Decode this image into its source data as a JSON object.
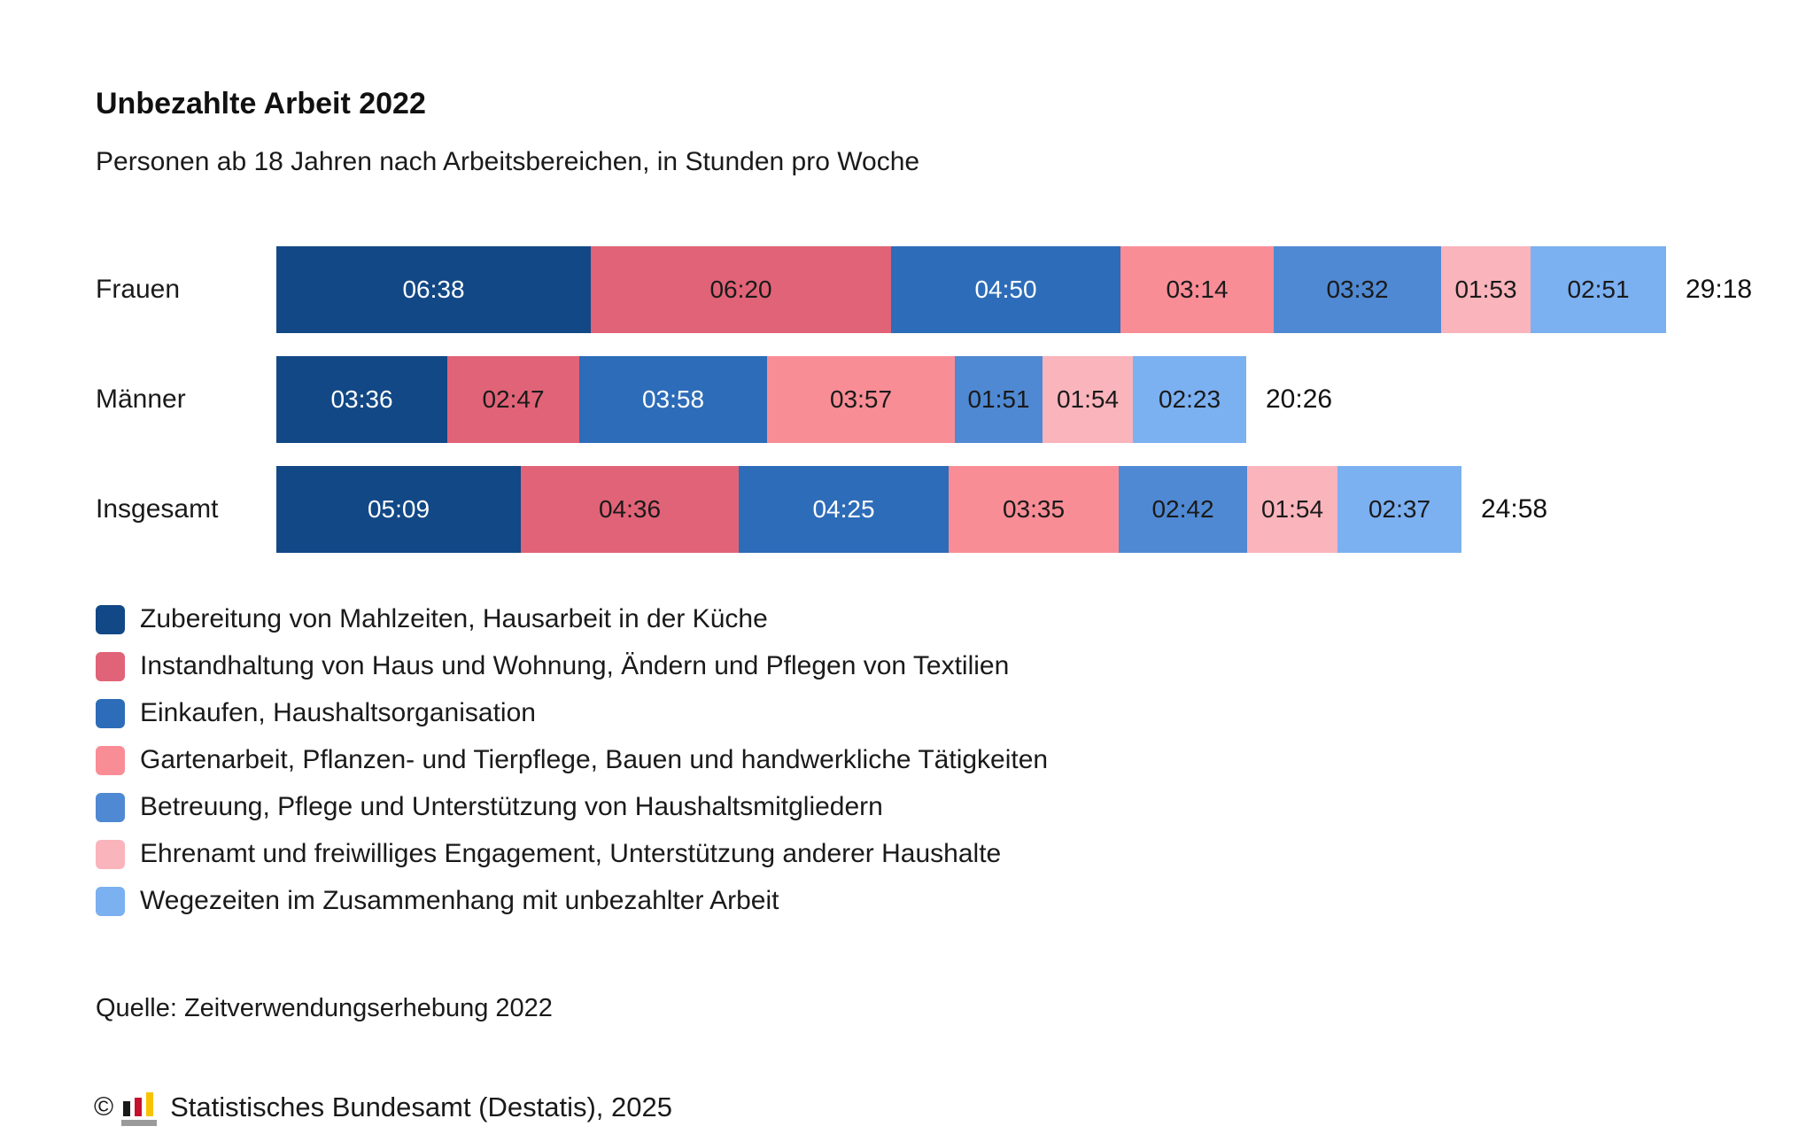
{
  "title": "Unbezahlte Arbeit 2022",
  "subtitle": "Personen ab 18 Jahren nach Arbeitsbereichen, in Stunden pro Woche",
  "chart_data": {
    "type": "bar",
    "orientation": "horizontal",
    "stacked": true,
    "value_format": "hh:mm",
    "unit": "Stunden pro Woche",
    "grid": false,
    "legend_position": "bottom",
    "categories": [
      "Frauen",
      "Männer",
      "Insgesamt"
    ],
    "series": [
      {
        "name": "Zubereitung von Mahlzeiten, Hausarbeit in der Küche",
        "color": "#124886",
        "label_color": "#ffffff",
        "values": [
          "06:38",
          "03:36",
          "05:09"
        ]
      },
      {
        "name": "Instandhaltung von Haus und Wohnung, Ändern und Pflegen von Textilien",
        "color": "#E16377",
        "label_color": "#1a1a1a",
        "values": [
          "06:20",
          "02:47",
          "04:36"
        ]
      },
      {
        "name": "Einkaufen, Haushaltsorganisation",
        "color": "#2D6CB8",
        "label_color": "#ffffff",
        "values": [
          "04:50",
          "03:58",
          "04:25"
        ]
      },
      {
        "name": "Gartenarbeit, Pflanzen- und Tierpflege, Bauen und handwerkliche Tätigkeiten",
        "color": "#F98D96",
        "label_color": "#1a1a1a",
        "values": [
          "03:14",
          "03:57",
          "03:35"
        ]
      },
      {
        "name": "Betreuung, Pflege und Unterstützung von Haushaltsmitgliedern",
        "color": "#4F89D3",
        "label_color": "#1a1a1a",
        "values": [
          "03:32",
          "01:51",
          "02:42"
        ]
      },
      {
        "name": "Ehrenamt und freiwilliges Engagement, Unterstützung anderer Haushalte",
        "color": "#FAB4BC",
        "label_color": "#1a1a1a",
        "values": [
          "01:53",
          "01:54",
          "01:54"
        ]
      },
      {
        "name": "Wegezeiten im Zusammenhang mit unbezahlter Arbeit",
        "color": "#7BB0F1",
        "label_color": "#1a1a1a",
        "values": [
          "02:51",
          "02:23",
          "02:37"
        ]
      }
    ],
    "totals": [
      "29:18",
      "20:26",
      "24:58"
    ]
  },
  "source": "Quelle: Zeitverwendungserhebung 2022",
  "footer": {
    "copyright": "©",
    "text": "Statistisches Bundesamt (Destatis), 2025",
    "logo": "destatis-bar-chart-logo",
    "logo_colors": {
      "black": "#1a1a1a",
      "red": "#c4122f",
      "gold": "#f8c200",
      "base": "#9a9a9a"
    }
  }
}
